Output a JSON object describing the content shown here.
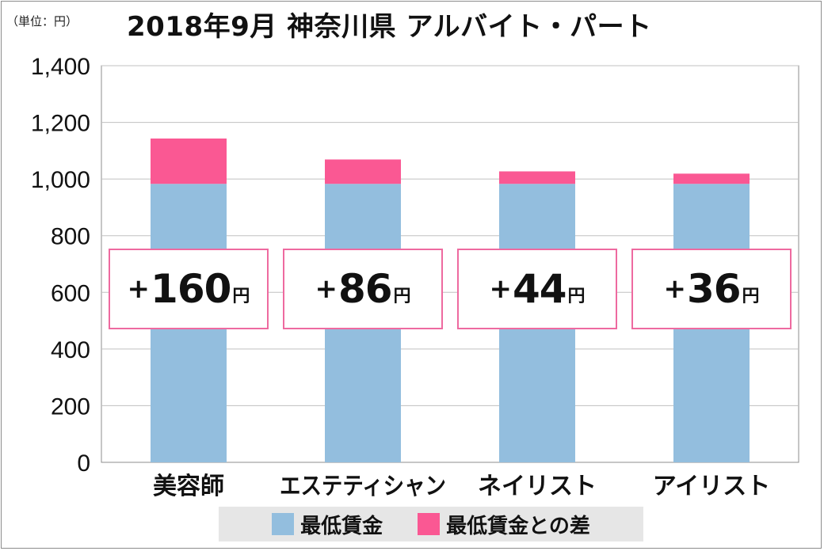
{
  "unit_label": "（単位：円）",
  "title": "2018年9月 神奈川県 アルバイト・パート",
  "colors": {
    "base": "#93bede",
    "diff": "#fa5893",
    "grid": "#c0c0c0",
    "box_border": "#ee6aa0"
  },
  "diff_labels": [
    {
      "sign": "+",
      "value": "160",
      "unit": "円"
    },
    {
      "sign": "+",
      "value": "86",
      "unit": "円"
    },
    {
      "sign": "+",
      "value": "44",
      "unit": "円"
    },
    {
      "sign": "+",
      "value": "36",
      "unit": "円"
    }
  ],
  "legend": {
    "base_label": "最低賃金",
    "diff_label": "最低賃金との差"
  },
  "chart_data": {
    "type": "bar",
    "stacked": true,
    "title": "2018年9月 神奈川県 アルバイト・パート",
    "ylabel": "（単位：円）",
    "xlabel": "",
    "categories": [
      "美容師",
      "エステティシャン",
      "ネイリスト",
      "アイリスト"
    ],
    "series": [
      {
        "name": "最低賃金",
        "values": [
          983,
          983,
          983,
          983
        ]
      },
      {
        "name": "最低賃金との差",
        "values": [
          160,
          86,
          44,
          36
        ]
      }
    ],
    "ylim": [
      0,
      1400
    ],
    "yticks": [
      0,
      200,
      400,
      600,
      800,
      1000,
      1200,
      1400
    ],
    "ytick_labels": [
      "0",
      "200",
      "400",
      "600",
      "800",
      "1,000",
      "1,200",
      "1,400"
    ],
    "grid": true,
    "legend_position": "bottom"
  }
}
